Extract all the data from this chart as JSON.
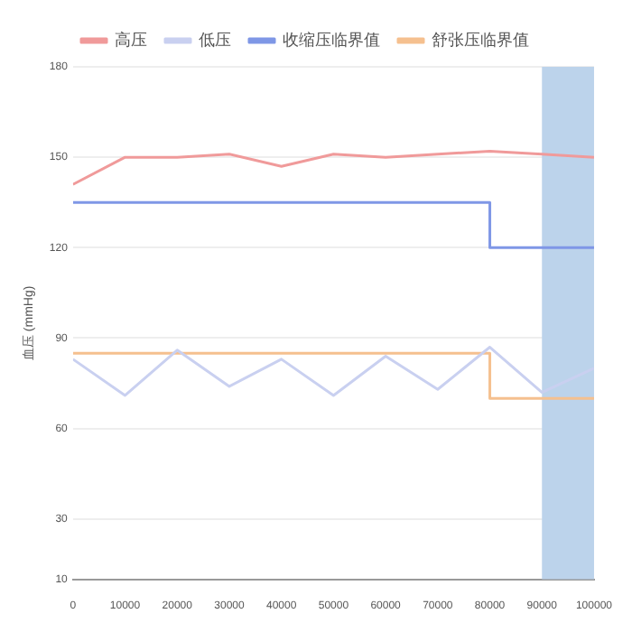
{
  "chart_data": {
    "type": "line",
    "ylabel": "血压 (mmHg)",
    "xlim": [
      0,
      100000
    ],
    "xticks": [
      0,
      10000,
      20000,
      30000,
      40000,
      50000,
      60000,
      70000,
      80000,
      90000,
      100000
    ],
    "ylim": [
      10,
      180
    ],
    "yticks": [
      10,
      30,
      60,
      90,
      120,
      150,
      180
    ],
    "grid": "y",
    "legend": "top",
    "marker": "none",
    "line_style": "solid",
    "x": [
      0,
      10000,
      20000,
      30000,
      40000,
      50000,
      60000,
      70000,
      80000,
      90000,
      100000
    ],
    "series": [
      {
        "name": "高压",
        "color": "#f09a9a",
        "values": [
          141,
          150,
          150,
          151,
          147,
          151,
          150,
          151,
          152,
          151,
          150
        ]
      },
      {
        "name": "低压",
        "color": "#c9d0f0",
        "values": [
          83,
          71,
          86,
          74,
          83,
          71,
          84,
          73,
          87,
          72,
          80
        ]
      },
      {
        "name": "收缩压临界值",
        "color": "#7f97e6",
        "x": [
          0,
          80000,
          80000,
          100000
        ],
        "values": [
          135,
          135,
          120,
          120
        ]
      },
      {
        "name": "舒张压临界值",
        "color": "#f5c08f",
        "x": [
          0,
          80000,
          80000,
          100000
        ],
        "values": [
          85,
          85,
          70,
          70
        ]
      }
    ],
    "bands": [
      {
        "axis": "x",
        "from": 90000,
        "to": 100000,
        "color": "#bcd3eb"
      }
    ]
  }
}
